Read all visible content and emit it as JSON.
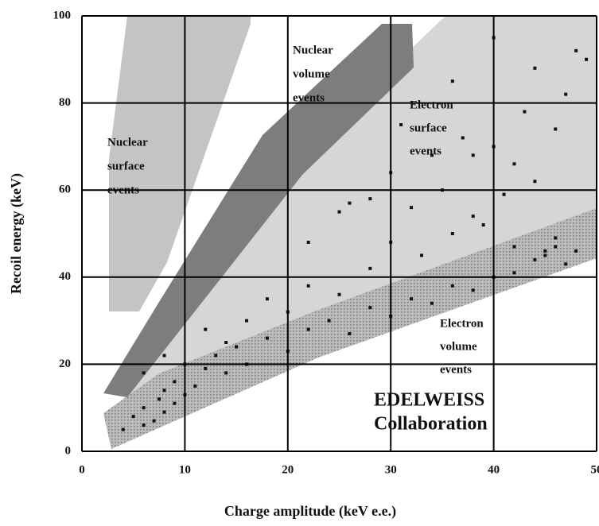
{
  "chart_data": {
    "type": "scatter",
    "xlabel": "Charge amplitude (keV e.e.)",
    "ylabel": "Recoil energy    (keV)",
    "xlim": [
      0,
      50
    ],
    "ylim": [
      0,
      100
    ],
    "xticks": [
      0,
      10,
      20,
      30,
      40,
      50
    ],
    "yticks": [
      0,
      20,
      40,
      60,
      80,
      100
    ],
    "grid": true,
    "color": "#111111",
    "annotations": [
      {
        "lines": [
          "Nuclear",
          "surface",
          "events"
        ]
      },
      {
        "lines": [
          "Nuclear",
          "volume",
          "events"
        ]
      },
      {
        "lines": [
          "Electron",
          "surface",
          "events"
        ]
      },
      {
        "lines": [
          "Electron",
          "volume",
          "events"
        ]
      },
      {
        "lines": [
          "EDELWEISS",
          "Collaboration"
        ]
      }
    ],
    "x": [
      5,
      6,
      7,
      7.5,
      8,
      8,
      9,
      9,
      10,
      11,
      12,
      13,
      14,
      15,
      16,
      18,
      20,
      22,
      24,
      26,
      28,
      30,
      32,
      34,
      36,
      38,
      40,
      42,
      44,
      45,
      46,
      47,
      46,
      45,
      48,
      6,
      8,
      10,
      12,
      14,
      16,
      18,
      20,
      22,
      25,
      28,
      30,
      33,
      36,
      39,
      42,
      25,
      28,
      32,
      35,
      38,
      41,
      44,
      22,
      26,
      30,
      34,
      37,
      40,
      43,
      47,
      49,
      36,
      40,
      44,
      48,
      31,
      38,
      42,
      46,
      4,
      6
    ],
    "y": [
      8,
      10,
      7,
      12,
      9,
      14,
      11,
      16,
      13,
      15,
      19,
      22,
      18,
      24,
      20,
      26,
      23,
      28,
      30,
      27,
      33,
      31,
      35,
      34,
      38,
      37,
      40,
      41,
      44,
      46,
      47,
      43,
      49,
      45,
      46,
      18,
      22,
      20,
      28,
      25,
      30,
      35,
      32,
      38,
      36,
      42,
      48,
      45,
      50,
      52,
      47,
      55,
      58,
      56,
      60,
      54,
      59,
      62,
      48,
      57,
      64,
      68,
      72,
      70,
      78,
      82,
      90,
      85,
      95,
      88,
      92,
      75,
      68,
      66,
      74,
      5,
      6
    ]
  }
}
